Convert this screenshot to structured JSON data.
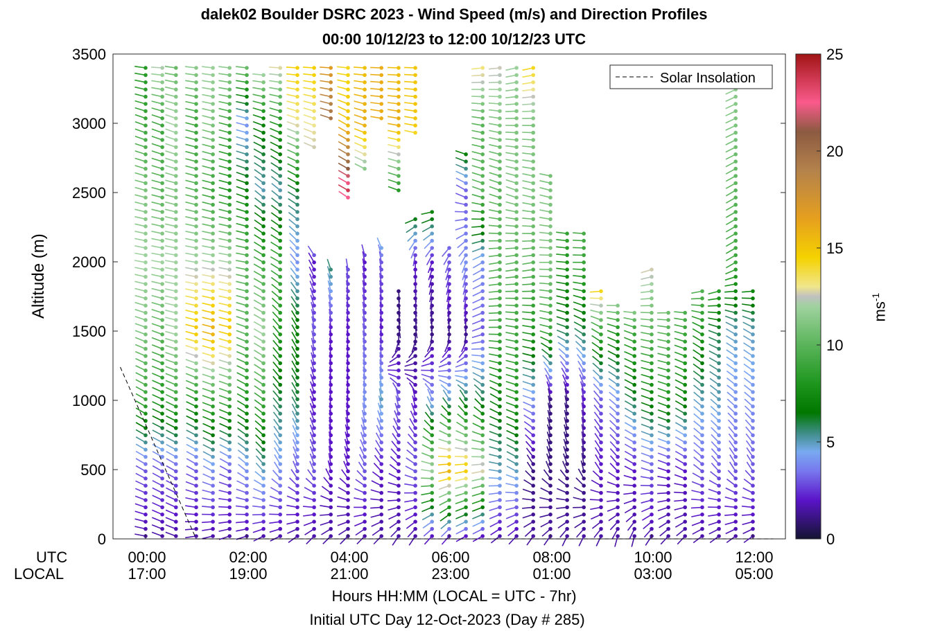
{
  "chart_data": {
    "type": "wind-barb-profile",
    "title": "dalek02 Boulder DSRC 2023 - Wind Speed (m/s) and Direction Profiles",
    "subtitle": "00:00 10/12/23 to 12:00 10/12/23  UTC",
    "ylabel": "Altitude (m)",
    "ylim": [
      0,
      3500
    ],
    "y_ticks": [
      "0",
      "500",
      "1000",
      "1500",
      "2000",
      "2500",
      "3000",
      "3500"
    ],
    "x_row_labels": {
      "utc": "UTC",
      "local": "LOCAL"
    },
    "x_ticks_utc": [
      "00:00",
      "02:00",
      "04:00",
      "06:00",
      "08:00",
      "10:00",
      "12:00"
    ],
    "x_ticks_local": [
      "17:00",
      "19:00",
      "21:00",
      "23:00",
      "01:00",
      "03:00",
      "05:00"
    ],
    "xlabel": "Hours HH:MM  (LOCAL = UTC - 7hr)",
    "xlabel2": "Initial UTC Day 12-Oct-2023 (Day # 285)",
    "legend": {
      "entry": "Solar Insolation",
      "position": "top-right"
    },
    "colorbar": {
      "label": "ms",
      "label_exponent": "-1",
      "range": [
        0,
        25
      ],
      "ticks": [
        "0",
        "5",
        "10",
        "15",
        "20",
        "25"
      ],
      "stops": [
        [
          0,
          "#141432"
        ],
        [
          2,
          "#5a14c8"
        ],
        [
          3.5,
          "#7878ee"
        ],
        [
          4.5,
          "#78aaf0"
        ],
        [
          5.5,
          "#3c8c82"
        ],
        [
          6.5,
          "#007800"
        ],
        [
          8,
          "#1e961e"
        ],
        [
          10,
          "#5ab45a"
        ],
        [
          12,
          "#a0d2a0"
        ],
        [
          12.5,
          "#c0c0c0"
        ],
        [
          13,
          "#f0e68c"
        ],
        [
          14.5,
          "#f5d200"
        ],
        [
          16.5,
          "#e6a01e"
        ],
        [
          19,
          "#b4824b"
        ],
        [
          21,
          "#8c5a41"
        ],
        [
          22.5,
          "#fa5a8c"
        ],
        [
          25,
          "#a01414"
        ]
      ]
    },
    "solar_insolation": {
      "x_hours": [
        -0.5,
        1.0,
        1.3
      ],
      "altitude_m": [
        1240,
        0,
        0
      ],
      "end_x_hours": 12.4
    },
    "wind_profiles": {
      "time_hours": [
        0.0,
        0.33,
        0.6,
        1.0,
        1.33,
        1.66,
        2.0,
        2.33,
        2.66,
        3.0,
        3.33,
        3.66,
        4.0,
        4.33,
        4.66,
        5.0,
        5.33,
        5.66,
        6.0,
        6.33,
        6.66,
        7.0,
        7.33,
        7.66,
        8.0,
        8.33,
        8.66,
        9.0,
        9.33,
        9.66,
        10.0,
        10.33,
        10.66,
        11.0,
        11.33,
        11.66,
        12.0
      ],
      "top_altitude_m": [
        3440,
        3430,
        3430,
        3430,
        3430,
        3430,
        3430,
        3380,
        3430,
        3430,
        3430,
        3430,
        3430,
        3430,
        3430,
        3430,
        3430,
        3430,
        3430,
        3430,
        3430,
        3430,
        3430,
        3430,
        2630,
        2250,
        2240,
        1810,
        1730,
        1640,
        1980,
        1650,
        1650,
        1810,
        1810,
        3430,
        1810
      ],
      "bottom_altitude_m": 20,
      "gaps_m": [
        [],
        [],
        [],
        [],
        [],
        [],
        [],
        [],
        [],
        [],
        [
          2050,
          2800
        ],
        [
          1950,
          3000
        ],
        [
          1950,
          2450
        ],
        [
          2050,
          2650
        ],
        [
          2150,
          3000
        ],
        [
          1800,
          2500
        ],
        [
          2350,
          2900
        ],
        [
          2400,
          3430
        ],
        [
          2150,
          3430
        ],
        [
          2800,
          3430
        ],
        [],
        [],
        [],
        [],
        [],
        [],
        [],
        [],
        [],
        [],
        [],
        [],
        [],
        [],
        [],
        [],
        []
      ],
      "speed_ms": [
        [
          1.5,
          3,
          9,
          11,
          12,
          11,
          9,
          8
        ],
        [
          1.5,
          3,
          8,
          10,
          12,
          10,
          9,
          13
        ],
        [
          1.5,
          3,
          9,
          12,
          12,
          11,
          12,
          10
        ],
        [
          1.5,
          3,
          8,
          15,
          12,
          10,
          9,
          12
        ],
        [
          1.5,
          4,
          9,
          16,
          12,
          9,
          11,
          12
        ],
        [
          1.5,
          3,
          9,
          15,
          12,
          8,
          9,
          12
        ],
        [
          1.5,
          4,
          8,
          10,
          10,
          7,
          4,
          12
        ],
        [
          1.5,
          5,
          9,
          12,
          9,
          5,
          7,
          14
        ],
        [
          1.5,
          4,
          6,
          8,
          9,
          5,
          8,
          14
        ],
        [
          1.5,
          3,
          6,
          7,
          4,
          6,
          13,
          15
        ],
        [
          1.5,
          3,
          2,
          3,
          2,
          12,
          13,
          15
        ],
        [
          1.5,
          2,
          2,
          2,
          6,
          11,
          20,
          16
        ],
        [
          1.5,
          2,
          2,
          2,
          3,
          24,
          15,
          14
        ],
        [
          1.5,
          3,
          4,
          3,
          2,
          9,
          16,
          15
        ],
        [
          1.5,
          2,
          5,
          2,
          3,
          10,
          16,
          16
        ],
        [
          1.5,
          2,
          3,
          1,
          1,
          8,
          16,
          15
        ],
        [
          1.5,
          3,
          2,
          1,
          2,
          9,
          15,
          15
        ],
        [
          1.5,
          12,
          4,
          1,
          2,
          9,
          15,
          15
        ],
        [
          1.5,
          16,
          5,
          1,
          3,
          4,
          12,
          14
        ],
        [
          1.5,
          15,
          6,
          1,
          4,
          3,
          10,
          14
        ],
        [
          1.5,
          13,
          6,
          3,
          4,
          10,
          10,
          14
        ],
        [
          1.5,
          5,
          7,
          9,
          10,
          10,
          11,
          13
        ],
        [
          1.5,
          5,
          8,
          9,
          10,
          11,
          11,
          12
        ],
        [
          1.5,
          1,
          4,
          8,
          10,
          11,
          11,
          15
        ],
        [
          1.5,
          1,
          1,
          9,
          11,
          11,
          10,
          14
        ],
        [
          1.5,
          1,
          1,
          6,
          8,
          10,
          11,
          7
        ],
        [
          1.5,
          1,
          2,
          6,
          9,
          10,
          13,
          9
        ],
        [
          1.5,
          2,
          3,
          9,
          18,
          12,
          12,
          12
        ],
        [
          1.5,
          2,
          4,
          8,
          17,
          12,
          12,
          12
        ],
        [
          1.5,
          2,
          6,
          9,
          17,
          11,
          10,
          10
        ],
        [
          1.5,
          3,
          7,
          10,
          13,
          9,
          15,
          15
        ],
        [
          1.5,
          2,
          8,
          10,
          12,
          10,
          9,
          9
        ],
        [
          1.5,
          2,
          7,
          9,
          11,
          9,
          9,
          10
        ],
        [
          1.5,
          3,
          5,
          8,
          11,
          10,
          8,
          12
        ],
        [
          1.5,
          3,
          5,
          6,
          10,
          11,
          12,
          12
        ],
        [
          1.5,
          3,
          4,
          5,
          9,
          10,
          11,
          12
        ],
        [
          1.5,
          3,
          4,
          5,
          9,
          10,
          11,
          12
        ]
      ],
      "direction_deg": [
        [
          280,
          300,
          300,
          290,
          280,
          285,
          290,
          275
        ],
        [
          290,
          300,
          295,
          290,
          280,
          285,
          290,
          270
        ],
        [
          290,
          300,
          295,
          285,
          280,
          285,
          290,
          275
        ],
        [
          260,
          300,
          295,
          285,
          280,
          285,
          285,
          275
        ],
        [
          255,
          300,
          290,
          285,
          280,
          285,
          285,
          275
        ],
        [
          250,
          300,
          290,
          285,
          280,
          285,
          285,
          275
        ],
        [
          250,
          310,
          300,
          290,
          280,
          290,
          285,
          275
        ],
        [
          240,
          320,
          305,
          300,
          300,
          310,
          290,
          270
        ],
        [
          240,
          330,
          320,
          320,
          300,
          310,
          290,
          270
        ],
        [
          230,
          340,
          330,
          330,
          320,
          300,
          290,
          270
        ],
        [
          220,
          340,
          340,
          350,
          330,
          300,
          290,
          270
        ],
        [
          220,
          350,
          355,
          355,
          340,
          290,
          290,
          270
        ],
        [
          220,
          340,
          355,
          355,
          350,
          300,
          300,
          270
        ],
        [
          220,
          330,
          355,
          350,
          350,
          300,
          290,
          270
        ],
        [
          220,
          320,
          350,
          355,
          350,
          290,
          280,
          270
        ],
        [
          210,
          310,
          350,
          170,
          180,
          290,
          280,
          270
        ],
        [
          210,
          300,
          350,
          170,
          180,
          290,
          280,
          270
        ],
        [
          220,
          280,
          340,
          180,
          200,
          280,
          280,
          260
        ],
        [
          220,
          260,
          330,
          180,
          200,
          300,
          280,
          260
        ],
        [
          240,
          260,
          330,
          180,
          200,
          300,
          280,
          260
        ],
        [
          240,
          260,
          320,
          250,
          240,
          290,
          280,
          260
        ],
        [
          230,
          280,
          300,
          270,
          260,
          290,
          280,
          260
        ],
        [
          220,
          300,
          290,
          280,
          260,
          290,
          270,
          255
        ],
        [
          210,
          330,
          290,
          280,
          260,
          285,
          270,
          255
        ],
        [
          210,
          340,
          350,
          285,
          270,
          285,
          270,
          255
        ],
        [
          200,
          340,
          350,
          290,
          275,
          280,
          270,
          250
        ],
        [
          200,
          350,
          350,
          300,
          270,
          280,
          270,
          250
        ],
        [
          200,
          330,
          320,
          300,
          240,
          280,
          270,
          250
        ],
        [
          190,
          320,
          310,
          290,
          240,
          280,
          270,
          250
        ],
        [
          190,
          300,
          300,
          290,
          240,
          280,
          270,
          250
        ],
        [
          210,
          290,
          290,
          280,
          250,
          280,
          270,
          250
        ],
        [
          220,
          290,
          290,
          280,
          240,
          270,
          270,
          250
        ],
        [
          220,
          300,
          300,
          285,
          250,
          270,
          270,
          250
        ],
        [
          230,
          310,
          310,
          300,
          230,
          250,
          250,
          250
        ],
        [
          230,
          320,
          310,
          290,
          230,
          240,
          250,
          250
        ],
        [
          230,
          330,
          310,
          300,
          240,
          240,
          245,
          245
        ],
        [
          230,
          330,
          310,
          300,
          240,
          240,
          245,
          245
        ]
      ]
    }
  }
}
